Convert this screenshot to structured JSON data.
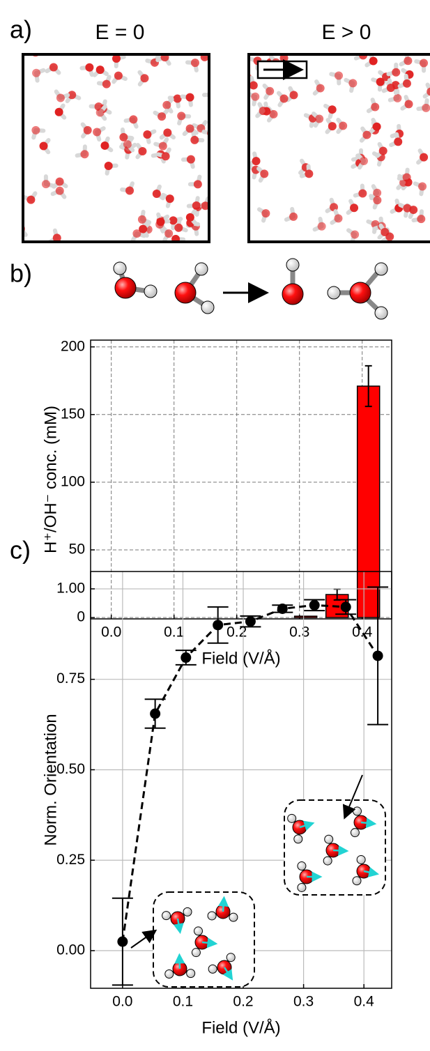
{
  "panels": {
    "a_label": "a)",
    "b_label": "b)",
    "c_label": "c)",
    "left_title": "E = 0",
    "right_title": "E > 0"
  },
  "chart_data": [
    {
      "type": "bar",
      "xlabel": "Field (V/Å)",
      "ylabel": "H⁺/OH⁻ conc. (mM)",
      "x": [
        0.01,
        0.11,
        0.21,
        0.26,
        0.31,
        0.36,
        0.41
      ],
      "values": [
        0,
        0,
        0,
        0,
        1,
        17,
        171
      ],
      "errors": [
        0,
        0,
        0,
        0,
        0,
        4,
        15
      ],
      "color": "#ff0000",
      "xlim": [
        -0.033,
        0.447
      ],
      "ylim": [
        -1,
        205
      ],
      "xticks": [
        {
          "value": 0,
          "label": "0.0"
        },
        0.1,
        0.2,
        0.3,
        0.4
      ],
      "yticks": [
        0,
        50,
        100,
        150,
        200
      ],
      "grid": "dashed"
    },
    {
      "type": "line",
      "xlabel": "Field (V/Å)",
      "ylabel": "Norm. Orientation",
      "x": [
        0.0,
        0.054,
        0.105,
        0.158,
        0.212,
        0.265,
        0.318,
        0.37,
        0.423
      ],
      "values": [
        0.025,
        0.655,
        0.81,
        0.9,
        0.91,
        0.945,
        0.955,
        0.95,
        0.815
      ],
      "errors": [
        0.12,
        0.04,
        0.02,
        0.05,
        0.015,
        0.01,
        0.015,
        0.02,
        0.19
      ],
      "color": "#000000",
      "xlim": [
        -0.053,
        0.446
      ],
      "ylim": [
        -0.104,
        1.048
      ],
      "xticks": [
        {
          "value": 0,
          "label": "0.0"
        },
        0.1,
        0.2,
        0.3,
        0.4
      ],
      "yticks": [
        {
          "value": 0,
          "label": "0.00"
        },
        0.25,
        {
          "value": 0.5,
          "label": "0.50"
        },
        0.75,
        {
          "value": 1,
          "label": "1.00"
        }
      ],
      "grid": "solid"
    }
  ]
}
